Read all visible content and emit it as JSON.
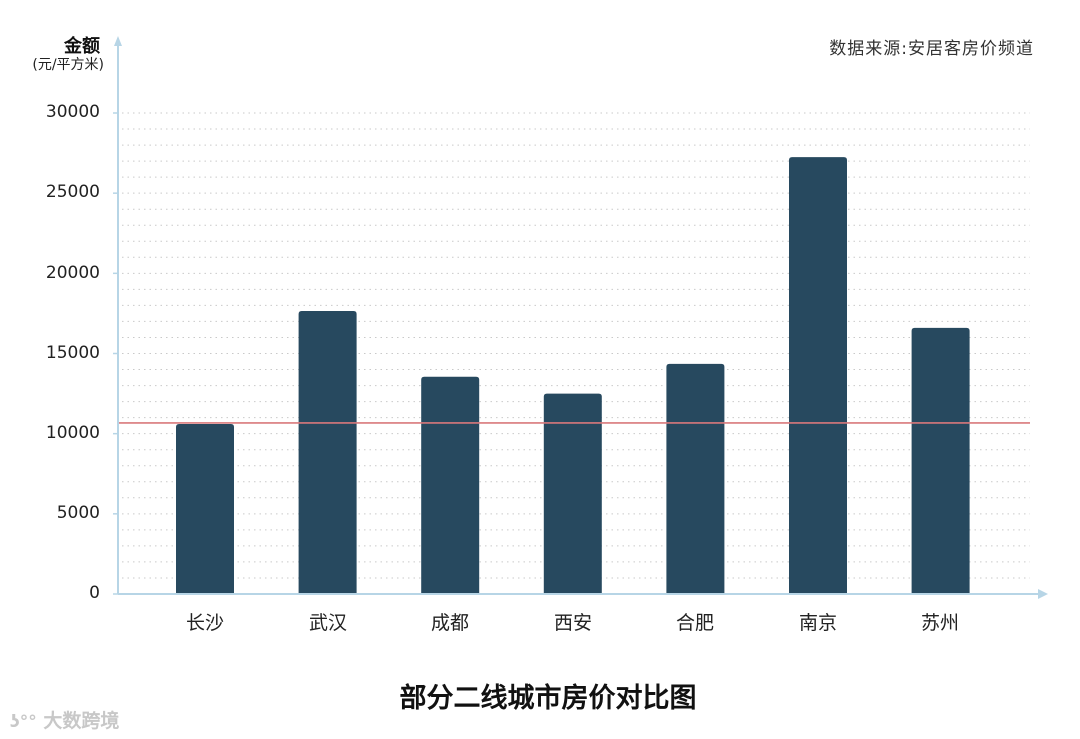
{
  "chart_data": {
    "type": "bar",
    "title": "部分二线城市房价对比图",
    "source": "数据来源:安居客房价频道",
    "ylabel": "金额",
    "ylabel_unit": "(元/平方米)",
    "xlabel": "",
    "categories": [
      "长沙",
      "武汉",
      "成都",
      "西安",
      "合肥",
      "南京",
      "苏州"
    ],
    "values": [
      10600,
      17650,
      13550,
      12500,
      14350,
      27250,
      16600
    ],
    "reference_line": {
      "value": 10670,
      "color": "#d9797b"
    },
    "ylim": [
      0,
      30000
    ],
    "yticks": [
      0,
      5000,
      10000,
      15000,
      20000,
      25000,
      30000
    ],
    "minor_grid_step": 1000,
    "grid": "dotted",
    "legend": "none",
    "bar_color": "#27495f",
    "axis_color": "#b7d5e6"
  },
  "labels": {
    "ylabel": "金额",
    "ylabel_unit": "(元/平方米)",
    "source": "数据来源:安居客房价频道",
    "title": "部分二线城市房价对比图",
    "yticks": [
      "30000",
      "25000",
      "20000",
      "15000",
      "10000",
      "5000",
      "0"
    ],
    "xticks": [
      "长沙",
      "武汉",
      "成都",
      "西安",
      "合肥",
      "南京",
      "苏州"
    ],
    "watermark": "大数跨境"
  }
}
